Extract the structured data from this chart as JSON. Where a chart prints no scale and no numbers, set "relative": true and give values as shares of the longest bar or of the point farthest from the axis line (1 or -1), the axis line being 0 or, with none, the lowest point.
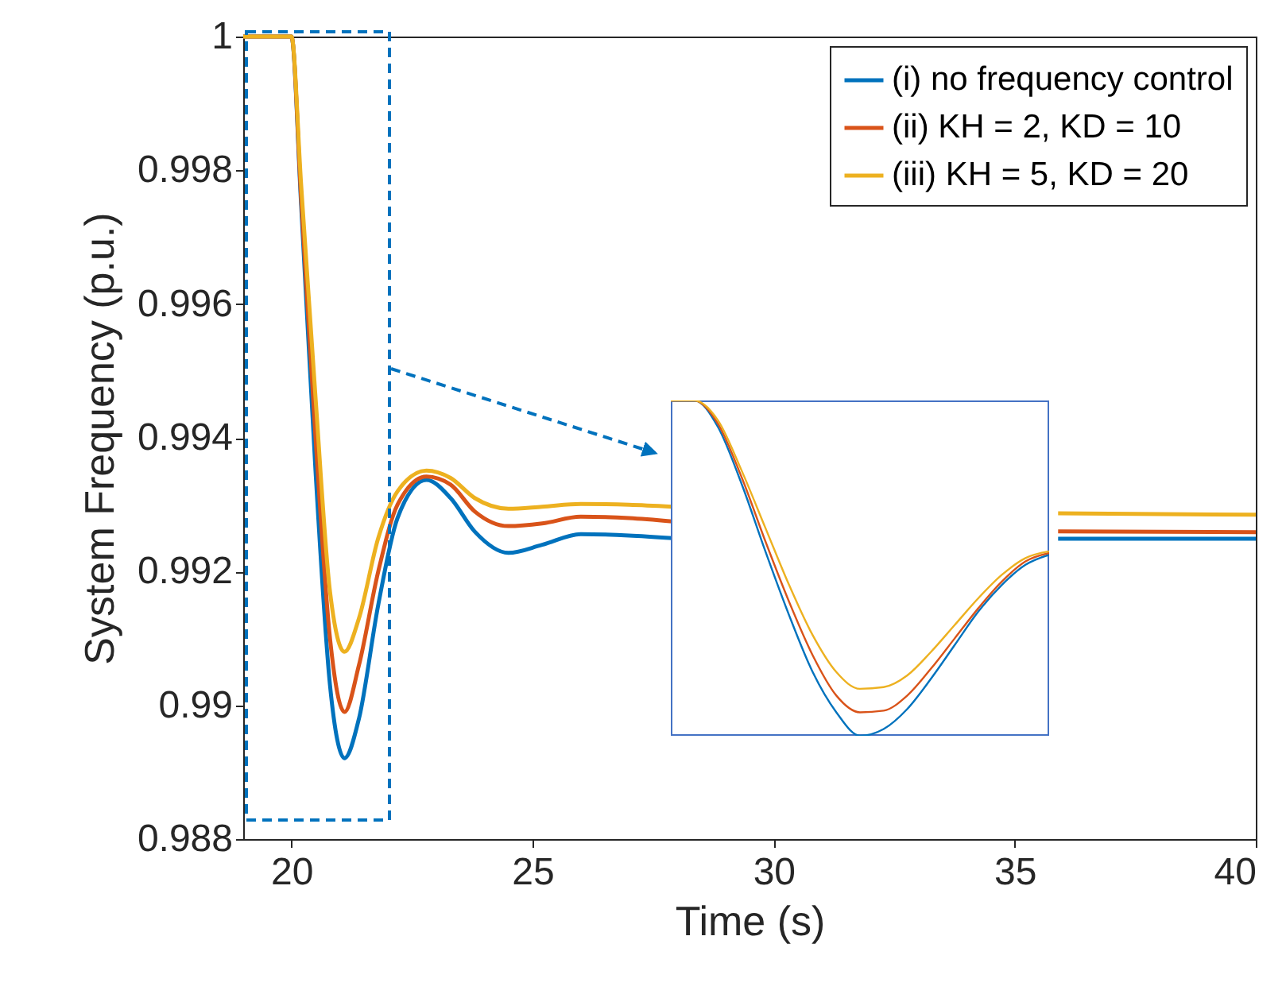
{
  "chart_data": [
    {
      "type": "line",
      "xlabel": "Time (s)",
      "ylabel": "System Frequency (p.u.)",
      "x": [
        19,
        20,
        20.2,
        20.5,
        20.8,
        21.1,
        21.4,
        21.8,
        22.2,
        22.8,
        23.3,
        23.8,
        24.5,
        25.2,
        26,
        27,
        27.9,
        30,
        35.9,
        40
      ],
      "series": [
        {
          "name": "(i) no frequency control",
          "color": "#0072bd",
          "values": [
            1,
            1,
            0.9975,
            0.9935,
            0.9903,
            0.98921,
            0.9898,
            0.9915,
            0.9928,
            0.99337,
            0.9931,
            0.9926,
            0.99228,
            0.9924,
            0.99256,
            0.99254,
            0.9925,
            null,
            0.99249,
            0.99249
          ]
        },
        {
          "name": "(ii) KH = 2, KD = 10",
          "color": "#d95319",
          "values": [
            1,
            1,
            0.9976,
            0.994,
            0.991,
            0.9899,
            0.9906,
            0.992,
            0.993,
            0.99342,
            0.9933,
            0.9929,
            0.99268,
            0.99272,
            0.99282,
            0.9928,
            0.99275,
            null,
            0.9926,
            0.99259
          ]
        },
        {
          "name": "(iii) KH = 5, KD = 20",
          "color": "#edb120",
          "values": [
            1,
            1,
            0.9978,
            0.9946,
            0.9917,
            0.9908,
            0.9913,
            0.9925,
            0.9932,
            0.99351,
            0.9934,
            0.9931,
            0.99294,
            0.99297,
            0.99301,
            0.993,
            0.99297,
            null,
            0.99287,
            0.99285
          ]
        }
      ],
      "xlim": [
        19,
        40
      ],
      "xticks": [
        20,
        25,
        30,
        35,
        40
      ],
      "ylim": [
        0.988,
        1
      ],
      "yticks": [
        0.988,
        0.99,
        0.992,
        0.994,
        0.996,
        0.998,
        1
      ],
      "legend": "top right"
    },
    {
      "type": "line",
      "relative": true,
      "categories": [
        null,
        null,
        null,
        null,
        null,
        null,
        null,
        null,
        null,
        null,
        null,
        null,
        null,
        null,
        null,
        null,
        null
      ],
      "series": [
        {
          "color": "#0072bd",
          "values": [
            1,
            1,
            0.92,
            0.75,
            0.55,
            0.36,
            0.19,
            0.07,
            0,
            0.02,
            0.08,
            0.17,
            0.27,
            0.37,
            0.45,
            0.51,
            0.54
          ]
        },
        {
          "color": "#d95319",
          "values": [
            1,
            1,
            0.93,
            0.77,
            0.58,
            0.4,
            0.24,
            0.12,
            0.07,
            0.075,
            0.12,
            0.2,
            0.29,
            0.38,
            0.46,
            0.52,
            0.545
          ]
        },
        {
          "color": "#edb120",
          "values": [
            1,
            1,
            0.94,
            0.79,
            0.62,
            0.45,
            0.3,
            0.19,
            0.14,
            0.145,
            0.18,
            0.25,
            0.33,
            0.41,
            0.48,
            0.53,
            0.55
          ]
        }
      ]
    }
  ]
}
